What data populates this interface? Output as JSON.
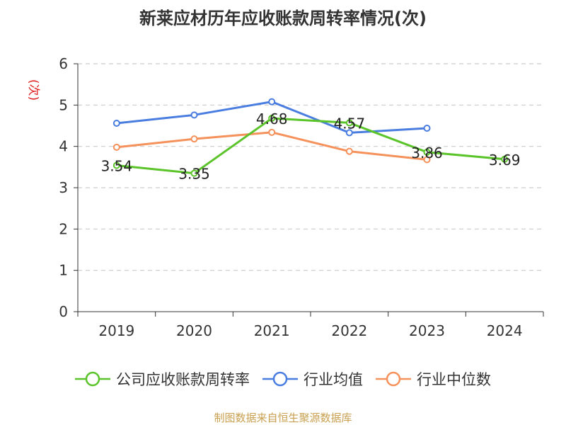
{
  "chart_data": {
    "type": "line",
    "title": "新莱应材历年应收账款周转率情况(次)",
    "ylabel": "(次)",
    "xlabel": "",
    "ylim": [
      0,
      6
    ],
    "yticks": [
      0,
      1,
      2,
      3,
      4,
      5,
      6
    ],
    "categories": [
      "2019",
      "2020",
      "2021",
      "2022",
      "2023",
      "2024"
    ],
    "series": [
      {
        "name": "公司应收账款周转率",
        "color": "#5bc42a",
        "values": [
          3.54,
          3.35,
          4.68,
          4.57,
          3.86,
          3.69
        ],
        "show_labels": true
      },
      {
        "name": "行业均值",
        "color": "#4a7de0",
        "values": [
          4.56,
          4.76,
          5.08,
          4.33,
          4.44,
          null
        ],
        "show_labels": false
      },
      {
        "name": "行业中位数",
        "color": "#f5915a",
        "values": [
          3.98,
          4.18,
          4.34,
          3.88,
          3.68,
          null
        ],
        "show_labels": false
      }
    ],
    "grid": true,
    "legend_position": "bottom"
  },
  "source": "制图数据来自恒生聚源数据库"
}
